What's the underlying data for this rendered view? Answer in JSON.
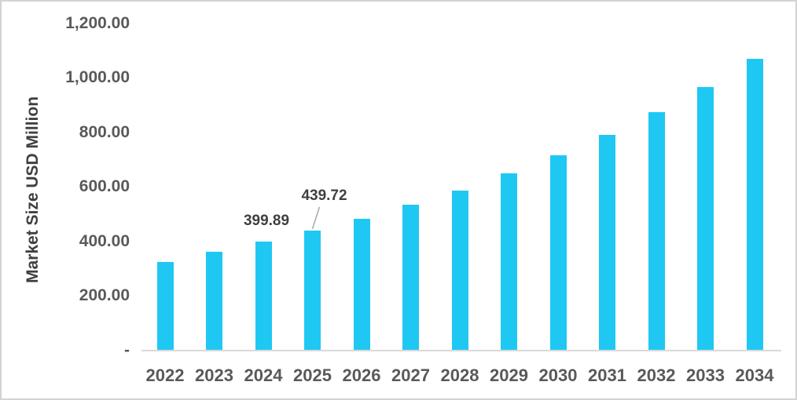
{
  "chart_data": {
    "type": "bar",
    "ylabel": "Market Size USD Million",
    "categories": [
      "2022",
      "2023",
      "2024",
      "2025",
      "2026",
      "2027",
      "2028",
      "2029",
      "2030",
      "2031",
      "2032",
      "2033",
      "2034"
    ],
    "values": [
      325,
      361,
      399.89,
      439.72,
      483,
      533,
      587,
      649,
      716,
      791,
      875,
      966,
      1069
    ],
    "data_labels": [
      {
        "index": 2,
        "text": "399.89",
        "leader_line": false
      },
      {
        "index": 3,
        "text": "439.72",
        "leader_line": true
      }
    ],
    "yticks": [
      {
        "label": "1,200.00",
        "value": 1200
      },
      {
        "label": "1,000.00",
        "value": 1000
      },
      {
        "label": "800.00",
        "value": 800
      },
      {
        "label": "600.00",
        "value": 600
      },
      {
        "label": "400.00",
        "value": 400
      },
      {
        "label": "200.00",
        "value": 200
      },
      {
        "label": "-",
        "value": 0
      }
    ],
    "ylim": [
      0,
      1200
    ],
    "grid": false,
    "legend": false,
    "colors": {
      "bar": "#1fc8f2",
      "axis_line": "#d9d9d9",
      "tick_text": "#595959",
      "axis_title_text": "#404040",
      "data_label_text": "#3f3f3f",
      "leader_line": "#a6a6a6",
      "background": "#ffffff",
      "border": "#d3d3d3"
    }
  }
}
